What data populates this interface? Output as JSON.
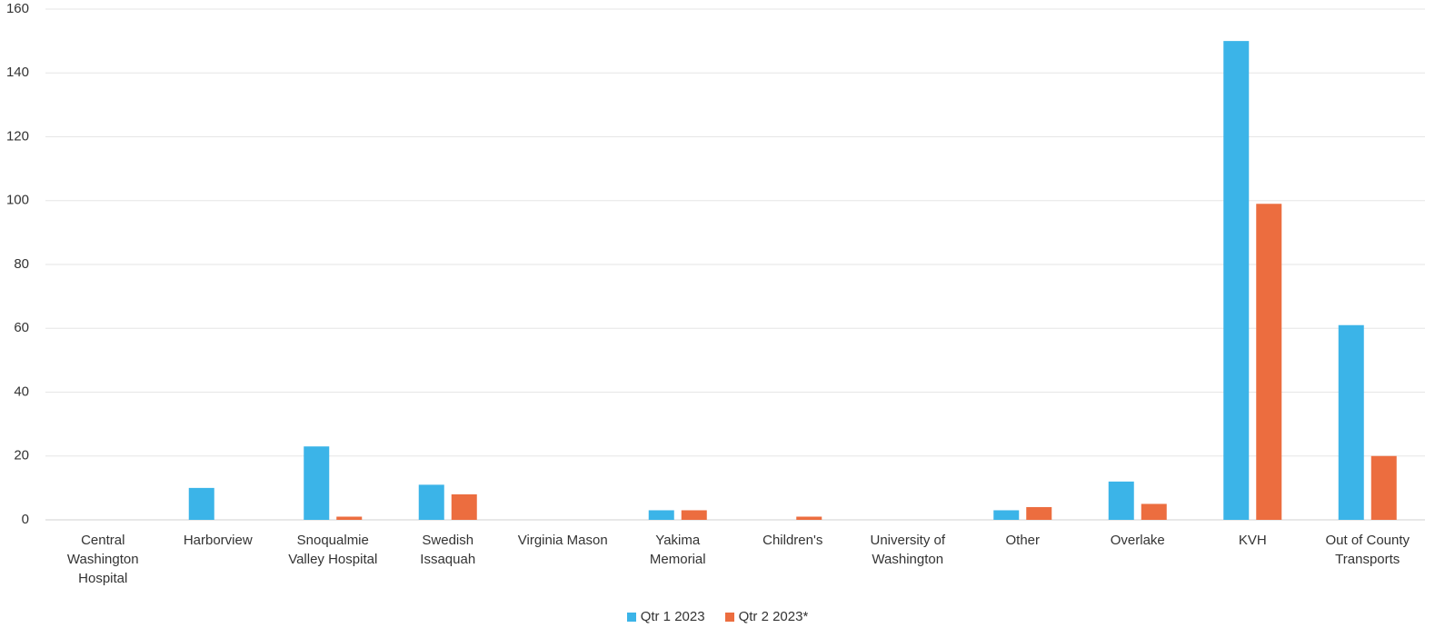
{
  "chart_data": {
    "type": "bar",
    "categories": [
      "Central Washington Hospital",
      "Harborview",
      "Snoqualmie Valley Hospital",
      "Swedish Issaquah",
      "Virginia Mason",
      "Yakima Memorial",
      "Children's",
      "University of Washington",
      "Other",
      "Overlake",
      "KVH",
      "Out of County Transports"
    ],
    "series": [
      {
        "name": "Qtr 1 2023",
        "color": "#3bb4e8",
        "values": [
          0,
          10,
          23,
          11,
          0,
          3,
          0,
          0,
          3,
          12,
          150,
          61
        ]
      },
      {
        "name": "Qtr 2 2023*",
        "color": "#ec6d3f",
        "values": [
          0,
          0,
          1,
          8,
          0,
          3,
          1,
          0,
          4,
          5,
          99,
          20
        ]
      }
    ],
    "ylim": [
      0,
      160
    ],
    "yticks": [
      0,
      20,
      40,
      60,
      80,
      100,
      120,
      140,
      160
    ],
    "grid": true,
    "legend": "bottom"
  }
}
